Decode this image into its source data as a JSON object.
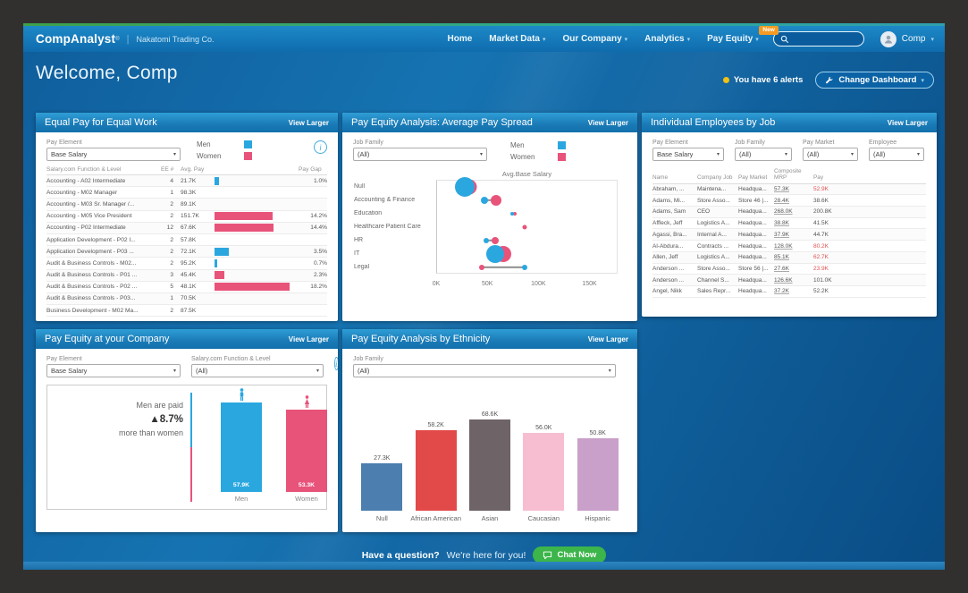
{
  "colors": {
    "men": "#2ba7e0",
    "women": "#e8537a",
    "alert_dot": "#f2c114",
    "chat_green": "#3cb54a",
    "badge_orange": "#f59b23"
  },
  "header": {
    "brand": "CompAnalyst",
    "brand_mark": "®",
    "separator": "|",
    "company": "Nakatomi Trading Co.",
    "nav": [
      {
        "label": "Home",
        "dropdown": false
      },
      {
        "label": "Market Data",
        "dropdown": true
      },
      {
        "label": "Our Company",
        "dropdown": true
      },
      {
        "label": "Analytics",
        "dropdown": true
      },
      {
        "label": "Pay Equity",
        "dropdown": true,
        "badge": "New"
      }
    ],
    "search_value": "",
    "user_name": "Comp"
  },
  "page": {
    "welcome": "Welcome, Comp",
    "alerts_text": "You have 6 alerts",
    "change_dashboard_label": "Change Dashboard",
    "view_larger": "View Larger",
    "footer_bold": "Have a question?",
    "footer_text": "We're here for you!",
    "chat_button": "Chat Now"
  },
  "legend": {
    "men": "Men",
    "women": "Women"
  },
  "cards": {
    "equal_pay": {
      "title": "Equal Pay for Equal Work",
      "pay_element_label": "Pay Element",
      "pay_element_value": "Base Salary",
      "columns": [
        "Salary.com Function & Level",
        "EE #",
        "Avg. Pay",
        "Pay Gap"
      ],
      "gap_scale_max": 18.2,
      "rows": [
        {
          "name": "Accounting - A02 Intermediate",
          "ee": "4",
          "avg_pay": "21.7K",
          "gap_pct": 1.0,
          "gap_label": "1.0%",
          "gender": "men"
        },
        {
          "name": "Accounting - M02 Manager",
          "ee": "1",
          "avg_pay": "98.3K"
        },
        {
          "name": "Accounting - M03 Sr. Manager /...",
          "ee": "2",
          "avg_pay": "89.1K"
        },
        {
          "name": "Accounting - M05 Vice President",
          "ee": "2",
          "avg_pay": "151.7K",
          "gap_pct": 14.2,
          "gap_label": "14.2%",
          "gender": "women"
        },
        {
          "name": "Accounting - P02 Intermediate",
          "ee": "12",
          "avg_pay": "67.6K",
          "gap_pct": 14.4,
          "gap_label": "14.4%",
          "gender": "women"
        },
        {
          "name": "Application Development - P02 I...",
          "ee": "2",
          "avg_pay": "57.8K"
        },
        {
          "name": "Application Development - P03 ...",
          "ee": "2",
          "avg_pay": "72.1K",
          "gap_pct": 3.5,
          "gap_label": "3.5%",
          "gender": "men"
        },
        {
          "name": "Audit & Business Controls - M02...",
          "ee": "2",
          "avg_pay": "95.2K",
          "gap_pct": 0.7,
          "gap_label": "0.7%",
          "gender": "men"
        },
        {
          "name": "Audit & Business Controls - P01 ...",
          "ee": "3",
          "avg_pay": "45.4K",
          "gap_pct": 2.3,
          "gap_label": "2.3%",
          "gender": "women"
        },
        {
          "name": "Audit & Business Controls - P02 ...",
          "ee": "5",
          "avg_pay": "48.1K",
          "gap_pct": 18.2,
          "gap_label": "18.2%",
          "gender": "women"
        },
        {
          "name": "Audit & Business Controls - P03...",
          "ee": "1",
          "avg_pay": "70.5K"
        },
        {
          "name": "Business Development - M02 Ma...",
          "ee": "2",
          "avg_pay": "87.5K"
        }
      ]
    },
    "pay_spread": {
      "title": "Pay Equity Analysis: Average Pay Spread",
      "job_family_label": "Job Family",
      "job_family_value": "(All)",
      "chart": {
        "type": "dumbbell-scatter",
        "axis_title": "Avg.Base Salary",
        "x_ticks": [
          "0K",
          "50K",
          "100K",
          "150K"
        ],
        "x_max_k": 150,
        "categories": [
          {
            "name": "Null",
            "men": 28,
            "women": 32,
            "men_size": 22,
            "women_size": 17
          },
          {
            "name": "Accounting & Finance",
            "men": 47,
            "women": 59,
            "men_size": 8,
            "women_size": 12
          },
          {
            "name": "Education",
            "men": 74,
            "women": 77,
            "men_size": 4,
            "women_size": 4
          },
          {
            "name": "Healthcare Patient Care",
            "women": 87,
            "women_size": 5
          },
          {
            "name": "HR",
            "men": 49,
            "women": 58,
            "men_size": 6,
            "women_size": 8
          },
          {
            "name": "IT",
            "men": 58,
            "women": 66,
            "men_size": 20,
            "women_size": 18
          },
          {
            "name": "Legal",
            "men": 87,
            "women": 45,
            "men_size": 6,
            "women_size": 6
          }
        ]
      }
    },
    "individual": {
      "title": "Individual Employees by Job",
      "filters": [
        {
          "label": "Pay Element",
          "value": "Base Salary"
        },
        {
          "label": "Job Family",
          "value": "(All)"
        },
        {
          "label": "Pay Market",
          "value": "(All)"
        },
        {
          "label": "Employee",
          "value": "(All)"
        }
      ],
      "columns": [
        "Name",
        "Company Job",
        "Pay Market",
        "Composite MRP",
        "Pay"
      ],
      "rows": [
        {
          "name": "Abraham, ...",
          "job": "Maintena...",
          "market": "Headqua...",
          "mrp": "57.3K",
          "pay": "52.9K",
          "below": true
        },
        {
          "name": "Adams, Mi...",
          "job": "Store Asso...",
          "market": "Store 46 |...",
          "mrp": "28.4K",
          "pay": "38.6K",
          "below": false
        },
        {
          "name": "Adams, Sam",
          "job": "CEO",
          "market": "Headqua...",
          "mrp": "268.0K",
          "pay": "200.8K",
          "below": false
        },
        {
          "name": "Affleck, Jeff",
          "job": "Logistics A...",
          "market": "Headqua...",
          "mrp": "38.8K",
          "pay": "41.5K",
          "below": false
        },
        {
          "name": "Agassi, Bra...",
          "job": "Internal A...",
          "market": "Headqua...",
          "mrp": "37.9K",
          "pay": "44.7K",
          "below": false
        },
        {
          "name": "Al-Abdura...",
          "job": "Contracts ...",
          "market": "Headqua...",
          "mrp": "128.0K",
          "pay": "80.2K",
          "below": true
        },
        {
          "name": "Allen, Jeff",
          "job": "Logistics A...",
          "market": "Headqua...",
          "mrp": "85.1K",
          "pay": "62.7K",
          "below": true
        },
        {
          "name": "Anderson ...",
          "job": "Store Asso...",
          "market": "Store 56 |...",
          "mrp": "27.6K",
          "pay": "23.9K",
          "below": true
        },
        {
          "name": "Anderson ...",
          "job": "Channel S...",
          "market": "Headqua...",
          "mrp": "126.6K",
          "pay": "101.0K",
          "below": false
        },
        {
          "name": "Angel, Nikk",
          "job": "Sales Repr...",
          "market": "Headqua...",
          "mrp": "37.2K",
          "pay": "52.2K",
          "below": false
        }
      ]
    },
    "company_equity": {
      "title": "Pay Equity at your Company",
      "pay_element_label": "Pay Element",
      "pay_element_value": "Base Salary",
      "function_label": "Salary.com Function & Level",
      "function_value": "(All)",
      "chart": {
        "type": "bar",
        "message": [
          "Men are paid",
          "▲8.7%",
          "more than women"
        ],
        "categories": [
          "Men",
          "Women"
        ],
        "values_k": [
          57.9,
          53.3
        ],
        "labels": [
          "57.9K",
          "53.3K"
        ]
      }
    },
    "ethnicity": {
      "title": "Pay Equity Analysis by Ethnicity",
      "job_family_label": "Job Family",
      "job_family_value": "(All)",
      "chart": {
        "type": "bar",
        "bars": [
          {
            "category": "Null",
            "label": "27.3K",
            "value_k": 27.3,
            "color": "#4d7eb0"
          },
          {
            "category": "African American",
            "label": "58.2K",
            "value_k": 58.2,
            "color": "#e24a4a"
          },
          {
            "category": "Asian",
            "label": "68.6K",
            "value_k": 68.6,
            "color": "#6e6366"
          },
          {
            "category": "Caucasian",
            "label": "56.0K",
            "value_k": 56.0,
            "color": "#f7bed2"
          },
          {
            "category": "Hispanic",
            "label": "50.8K",
            "value_k": 50.8,
            "color": "#c9a0ca"
          }
        ]
      }
    }
  }
}
